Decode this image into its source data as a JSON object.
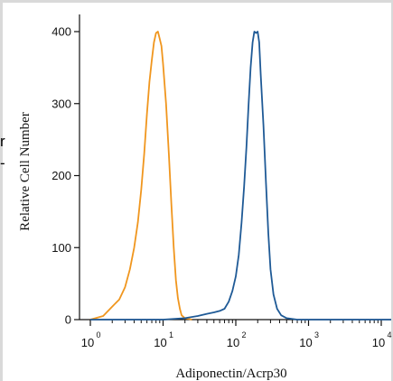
{
  "chart_data": {
    "type": "line",
    "title": "",
    "xlabel": "Adiponectin/Acrp30",
    "ylabel": "Relative Cell Number",
    "x_scale": "log",
    "xlim": [
      1,
      100000
    ],
    "ylim": [
      0,
      420
    ],
    "x_ticks": [
      {
        "value": 1,
        "base": "10",
        "exp": "0"
      },
      {
        "value": 10,
        "base": "10",
        "exp": "1"
      },
      {
        "value": 100,
        "base": "10",
        "exp": "2"
      },
      {
        "value": 1000,
        "base": "10",
        "exp": "3"
      },
      {
        "value": 10000,
        "base": "10",
        "exp": "4"
      }
    ],
    "y_ticks": [
      "0",
      "100",
      "200",
      "300",
      "400"
    ],
    "y_tick_values": [
      0,
      100,
      200,
      300,
      400
    ],
    "grid": false,
    "series": [
      {
        "color": "#f0961e",
        "points": [
          [
            1,
            0
          ],
          [
            1.5,
            5
          ],
          [
            2,
            18
          ],
          [
            2.5,
            28
          ],
          [
            3,
            45
          ],
          [
            3.5,
            70
          ],
          [
            4,
            100
          ],
          [
            4.5,
            135
          ],
          [
            5,
            180
          ],
          [
            5.5,
            230
          ],
          [
            6,
            285
          ],
          [
            6.5,
            330
          ],
          [
            7,
            360
          ],
          [
            7.5,
            385
          ],
          [
            8,
            398
          ],
          [
            8.5,
            400
          ],
          [
            9,
            390
          ],
          [
            9.5,
            380
          ],
          [
            10,
            355
          ],
          [
            11,
            300
          ],
          [
            12,
            230
          ],
          [
            13,
            160
          ],
          [
            14,
            100
          ],
          [
            15,
            55
          ],
          [
            16,
            30
          ],
          [
            17,
            15
          ],
          [
            18,
            6
          ],
          [
            20,
            2
          ],
          [
            25,
            0
          ]
        ]
      },
      {
        "color": "#1f5a96",
        "points": [
          [
            1,
            0
          ],
          [
            10,
            0
          ],
          [
            20,
            2
          ],
          [
            30,
            5
          ],
          [
            40,
            8
          ],
          [
            50,
            10
          ],
          [
            60,
            12
          ],
          [
            70,
            15
          ],
          [
            80,
            25
          ],
          [
            90,
            40
          ],
          [
            100,
            60
          ],
          [
            110,
            90
          ],
          [
            120,
            135
          ],
          [
            130,
            185
          ],
          [
            140,
            240
          ],
          [
            150,
            300
          ],
          [
            160,
            350
          ],
          [
            170,
            385
          ],
          [
            180,
            400
          ],
          [
            190,
            398
          ],
          [
            200,
            400
          ],
          [
            210,
            385
          ],
          [
            220,
            340
          ],
          [
            240,
            270
          ],
          [
            260,
            190
          ],
          [
            280,
            120
          ],
          [
            300,
            70
          ],
          [
            330,
            35
          ],
          [
            370,
            15
          ],
          [
            420,
            6
          ],
          [
            500,
            2
          ],
          [
            700,
            0
          ],
          [
            100000,
            0
          ]
        ]
      }
    ]
  },
  "fragments": {
    "top_char": "r",
    "bottom_char": "-"
  }
}
